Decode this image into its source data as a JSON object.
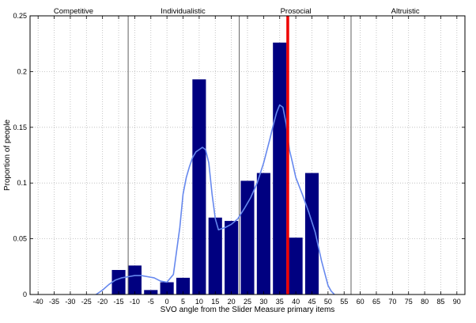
{
  "chart_data": {
    "type": "bar",
    "title": "",
    "xlabel": "SVO angle from the Slider Measure primary items",
    "ylabel": "Proportion of people",
    "xlim": [
      -42.5,
      92.5
    ],
    "ylim": [
      0,
      0.25
    ],
    "grid": true,
    "x_ticks": [
      -40,
      -35,
      -30,
      -25,
      -20,
      -15,
      -10,
      -5,
      0,
      5,
      10,
      15,
      20,
      25,
      30,
      35,
      40,
      45,
      50,
      55,
      60,
      65,
      70,
      75,
      80,
      85,
      90
    ],
    "y_ticks": [
      0,
      0.05,
      0.1,
      0.15,
      0.2,
      0.25
    ],
    "x_tick_labels": [
      "-40",
      "-35",
      "-30",
      "-25",
      "-20",
      "-15",
      "-10",
      "-5",
      "0",
      "5",
      "10",
      "15",
      "20",
      "25",
      "30",
      "35",
      "40",
      "45",
      "50",
      "55",
      "60",
      "65",
      "70",
      "75",
      "80",
      "85",
      "90"
    ],
    "y_tick_labels": [
      "0",
      "0.05",
      "0.1",
      "0.15",
      "0.2",
      "0.25"
    ],
    "bar_width": 4.2,
    "bar_color": "#000080",
    "bars": {
      "x": [
        -15,
        -10,
        -5,
        0,
        5,
        10,
        15,
        20,
        25,
        30,
        35,
        40,
        45
      ],
      "values": [
        0.022,
        0.026,
        0.004,
        0.011,
        0.015,
        0.193,
        0.069,
        0.066,
        0.102,
        0.109,
        0.226,
        0.051,
        0.109
      ]
    },
    "density_color": "#6688ee",
    "density_curve": {
      "x": [
        -22,
        -20,
        -18,
        -16,
        -14,
        -12,
        -10,
        -8,
        -6,
        -4,
        -2,
        0,
        2,
        4,
        5,
        6,
        7,
        8,
        9,
        10,
        11,
        12,
        13,
        14,
        15,
        16,
        18,
        20,
        22,
        24,
        26,
        28,
        30,
        32,
        33,
        34,
        35,
        36,
        37,
        38,
        39,
        40,
        42,
        44,
        46,
        48,
        50,
        51,
        52
      ],
      "y": [
        0.0,
        0.004,
        0.009,
        0.013,
        0.015,
        0.016,
        0.017,
        0.017,
        0.016,
        0.015,
        0.012,
        0.011,
        0.018,
        0.06,
        0.09,
        0.105,
        0.115,
        0.123,
        0.128,
        0.13,
        0.132,
        0.13,
        0.118,
        0.09,
        0.068,
        0.058,
        0.06,
        0.063,
        0.068,
        0.077,
        0.087,
        0.1,
        0.118,
        0.14,
        0.152,
        0.163,
        0.17,
        0.168,
        0.153,
        0.13,
        0.118,
        0.105,
        0.09,
        0.074,
        0.056,
        0.03,
        0.008,
        0.003,
        0.0
      ]
    },
    "category_boundaries": [
      -12.04,
      22.45,
      57.15
    ],
    "reference_line": {
      "x": 37.5,
      "color": "#ee0000"
    },
    "region_labels": [
      {
        "text": "Competitive",
        "x": -29
      },
      {
        "text": "Individualistic",
        "x": 5
      },
      {
        "text": "Prosocial",
        "x": 40
      },
      {
        "text": "Altruistic",
        "x": 74
      }
    ]
  }
}
